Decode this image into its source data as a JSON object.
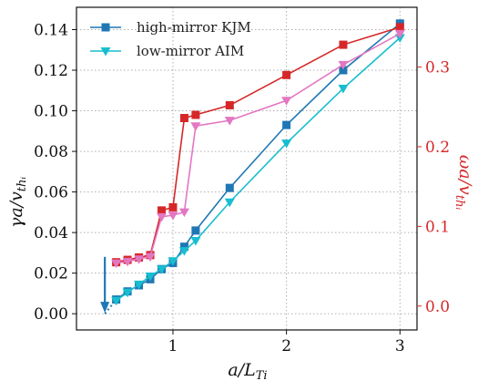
{
  "chart_data": {
    "type": "line",
    "xlabel": "a/L_Ti",
    "ylabel_left": "γa/v_thi",
    "ylabel_right": "ωa/v_thi",
    "xlim": [
      0.15,
      3.15
    ],
    "ylim_left": [
      -0.008,
      0.151
    ],
    "ylim_right": [
      -0.03,
      0.375
    ],
    "x_ticks": [
      {
        "v": 1,
        "label": "1"
      },
      {
        "v": 2,
        "label": "2"
      },
      {
        "v": 3,
        "label": "3"
      }
    ],
    "y_ticks_left": [
      {
        "v": 0.0,
        "label": "0.00"
      },
      {
        "v": 0.02,
        "label": "0.02"
      },
      {
        "v": 0.04,
        "label": "0.04"
      },
      {
        "v": 0.06,
        "label": "0.06"
      },
      {
        "v": 0.08,
        "label": "0.08"
      },
      {
        "v": 0.1,
        "label": "0.10"
      },
      {
        "v": 0.12,
        "label": "0.12"
      },
      {
        "v": 0.14,
        "label": "0.14"
      }
    ],
    "y_ticks_right": [
      {
        "v": 0.0,
        "label": "0.0"
      },
      {
        "v": 0.1,
        "label": "0.1"
      },
      {
        "v": 0.2,
        "label": "0.2"
      },
      {
        "v": 0.3,
        "label": "0.3"
      }
    ],
    "grid": true,
    "legend_position": "top-left",
    "legend": [
      {
        "label": "high-mirror KJM",
        "color": "#1f77b4",
        "marker": "square"
      },
      {
        "label": "low-mirror AIM",
        "color": "#17becf",
        "marker": "triangle-down"
      }
    ],
    "series": [
      {
        "name": "high-mirror KJM",
        "axis": "left",
        "color": "#1f77b4",
        "marker": "square",
        "x": [
          0.5,
          0.6,
          0.7,
          0.8,
          0.9,
          1.0,
          1.1,
          1.2,
          1.5,
          2.0,
          2.5,
          3.0
        ],
        "y": [
          0.007,
          0.011,
          0.014,
          0.017,
          0.022,
          0.025,
          0.033,
          0.041,
          0.062,
          0.093,
          0.12,
          0.143
        ]
      },
      {
        "name": "low-mirror AIM",
        "axis": "left",
        "color": "#17becf",
        "marker": "triangle-down",
        "x": [
          0.5,
          0.6,
          0.7,
          0.8,
          0.9,
          1.0,
          1.1,
          1.2,
          1.5,
          2.0,
          2.5,
          3.0
        ],
        "y": [
          0.0065,
          0.0105,
          0.0145,
          0.0185,
          0.022,
          0.026,
          0.031,
          0.036,
          0.055,
          0.084,
          0.111,
          0.136
        ]
      },
      {
        "axis": "right",
        "color": "#d62728",
        "marker": "square",
        "x": [
          0.5,
          0.6,
          0.7,
          0.8,
          0.9,
          1.0,
          1.1,
          1.2,
          1.5,
          2.0,
          2.5,
          3.0
        ],
        "y": [
          0.055,
          0.058,
          0.061,
          0.064,
          0.12,
          0.124,
          0.236,
          0.24,
          0.252,
          0.29,
          0.328,
          0.35
        ]
      },
      {
        "axis": "right",
        "color": "#e377c2",
        "marker": "triangle-down",
        "x": [
          0.5,
          0.6,
          0.7,
          0.8,
          0.9,
          1.0,
          1.1,
          1.2,
          1.5,
          2.0,
          2.5,
          3.0
        ],
        "y": [
          0.054,
          0.056,
          0.059,
          0.062,
          0.112,
          0.114,
          0.118,
          0.226,
          0.233,
          0.258,
          0.303,
          0.342
        ]
      }
    ],
    "annotations": [
      {
        "type": "arrow",
        "x": 0.4,
        "y_from": 0.028,
        "y_to": 0.0005,
        "color": "#1f77b4"
      },
      {
        "type": "dotted-line",
        "x": [
          0.4,
          0.5
        ],
        "y": [
          0.0,
          0.007
        ],
        "color": "#1f77b4"
      }
    ]
  }
}
